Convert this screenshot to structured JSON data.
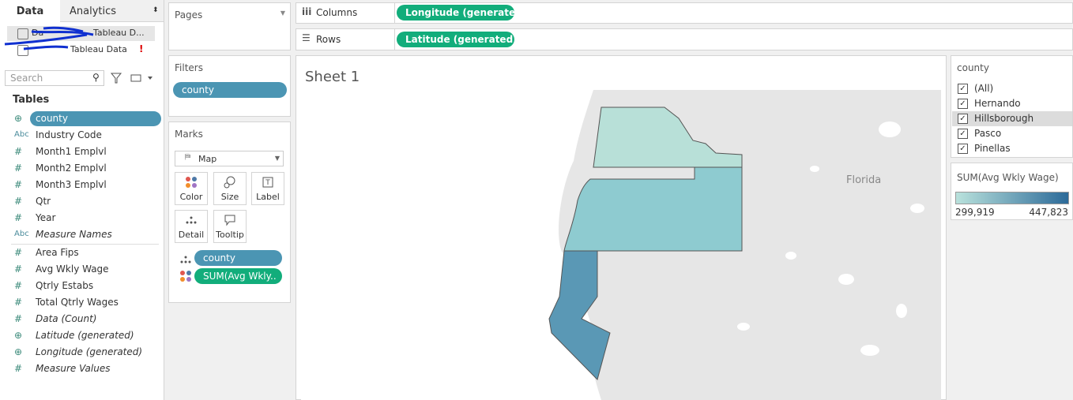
{
  "tabs": [
    "Data",
    "Analytics"
  ],
  "data_sources": [
    "Da",
    "Tableau D...",
    "Tableau Data"
  ],
  "search_placeholder": "Search",
  "tables_heading": "Tables",
  "dimensions": [
    {
      "name": "county"
    },
    {
      "icon": "Abc",
      "name": "Industry Code"
    },
    {
      "icon": "#",
      "name": "Month1 Emplvl"
    },
    {
      "icon": "#",
      "name": "Month2 Emplvl"
    },
    {
      "icon": "#",
      "name": "Month3 Emplvl"
    },
    {
      "icon": "#",
      "name": "Qtr"
    },
    {
      "icon": "#",
      "name": "Year"
    },
    {
      "icon": "Abc",
      "name": "Measure Names",
      "italic": true
    }
  ],
  "measures": [
    {
      "icon": "#",
      "name": "Area Fips"
    },
    {
      "icon": "#",
      "name": "Avg Wkly Wage"
    },
    {
      "icon": "#",
      "name": "Qtrly Estabs"
    },
    {
      "icon": "#",
      "name": "Total Qtrly Wages"
    },
    {
      "icon": "#",
      "name": "Data (Count)",
      "italic": true
    },
    {
      "name": "Latitude (generated)",
      "italic": true
    },
    {
      "name": "Longitude (generated)",
      "italic": true
    },
    {
      "icon": "#",
      "name": "Measure Values",
      "italic": true
    }
  ],
  "pages": {
    "title": "Pages"
  },
  "filters": {
    "title": "Filters",
    "pills": [
      "county"
    ]
  },
  "marks": {
    "title": "Marks",
    "mark_type": "Map",
    "buttons": [
      "Color",
      "Size",
      "Label",
      "Detail",
      "Tooltip"
    ],
    "pills": [
      "county",
      "SUM(Avg Wkly.."
    ]
  },
  "shelves": {
    "columns": {
      "label": "Columns",
      "pill": "Longitude (generated)"
    },
    "rows": {
      "label": "Rows",
      "pill": "Latitude (generated)"
    }
  },
  "sheet": {
    "title": "Sheet 1",
    "map_label": "Florida"
  },
  "county_filter": {
    "title": "county",
    "items": [
      "(All)",
      "Hernando",
      "Hillsborough",
      "Pasco",
      "Pinellas"
    ]
  },
  "color_legend": {
    "title": "SUM(Avg Wkly Wage)",
    "min_label": "299,919",
    "max_label": "447,823"
  }
}
